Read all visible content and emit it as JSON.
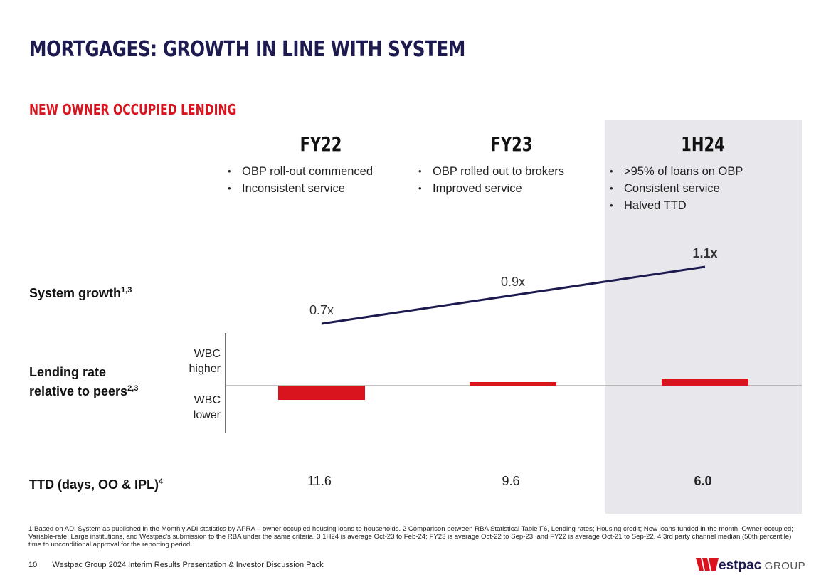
{
  "page": {
    "title": "MORTGAGES: GROWTH IN LINE WITH SYSTEM",
    "section_title": "NEW OWNER OCCUPIED LENDING"
  },
  "columns": [
    {
      "heading": "FY22",
      "bullets": [
        "OBP roll-out commenced",
        "Inconsistent service"
      ]
    },
    {
      "heading": "FY23",
      "bullets": [
        "OBP rolled out to brokers",
        "Improved service"
      ]
    },
    {
      "heading": "1H24",
      "bullets": [
        ">95% of loans on OBP",
        "Consistent service",
        "Halved  TTD"
      ]
    }
  ],
  "rows": {
    "system_growth": {
      "label": "System growth",
      "sup": "1,3"
    },
    "lending_rate": {
      "label_line1": "Lending rate",
      "label_line2": "relative to peers",
      "sup": "2,3",
      "higher_line1": "WBC",
      "higher_line2": "higher",
      "lower_line1": "WBC",
      "lower_line2": "lower"
    },
    "ttd": {
      "label": "TTD (days, OO & IPL)",
      "sup": "4"
    }
  },
  "chart_data": [
    {
      "type": "line",
      "title": "System growth",
      "categories": [
        "FY22",
        "FY23",
        "1H24"
      ],
      "values": [
        0.7,
        0.9,
        1.1
      ],
      "data_labels": [
        "0.7x",
        "0.9x",
        "1.1x"
      ],
      "ylim": [
        0.5,
        1.3
      ],
      "color": "#1c1a4f"
    },
    {
      "type": "bar",
      "title": "Lending rate relative to peers",
      "categories": [
        "FY22",
        "FY23",
        "1H24"
      ],
      "values": [
        -4,
        1,
        2
      ],
      "ylim": [
        -13,
        14
      ],
      "color": "#d9141e"
    },
    {
      "type": "table",
      "title": "TTD (days, OO & IPL)",
      "categories": [
        "FY22",
        "FY23",
        "1H24"
      ],
      "values": [
        "11.6",
        "9.6",
        "6.0"
      ]
    }
  ],
  "footnote": "1 Based on ADI System as published in the Monthly ADI statistics by APRA – owner occupied housing loans to households. 2 Comparison between RBA Statistical Table F6, Lending rates; Housing credit; New loans funded in the month; Owner-occupied; Variable-rate; Large institutions, and Westpac's submission to the RBA under the same criteria. 3 1H24 is average Oct-23 to Feb-24; FY23 is average Oct-22 to Sep-23; and FY22 is average Oct-21 to Sep-22. 4 3rd party channel median (50th percentile) time to unconditional approval for the reporting period.",
  "footer": {
    "page_number": "10",
    "doc_title": "Westpac Group 2024 Interim Results Presentation & Investor Discussion Pack",
    "logo_word": "estpac",
    "logo_group": "GROUP"
  },
  "colors": {
    "brand_red": "#d9141e",
    "brand_navy": "#1c1a4f",
    "shade": "#e8e7ec"
  }
}
